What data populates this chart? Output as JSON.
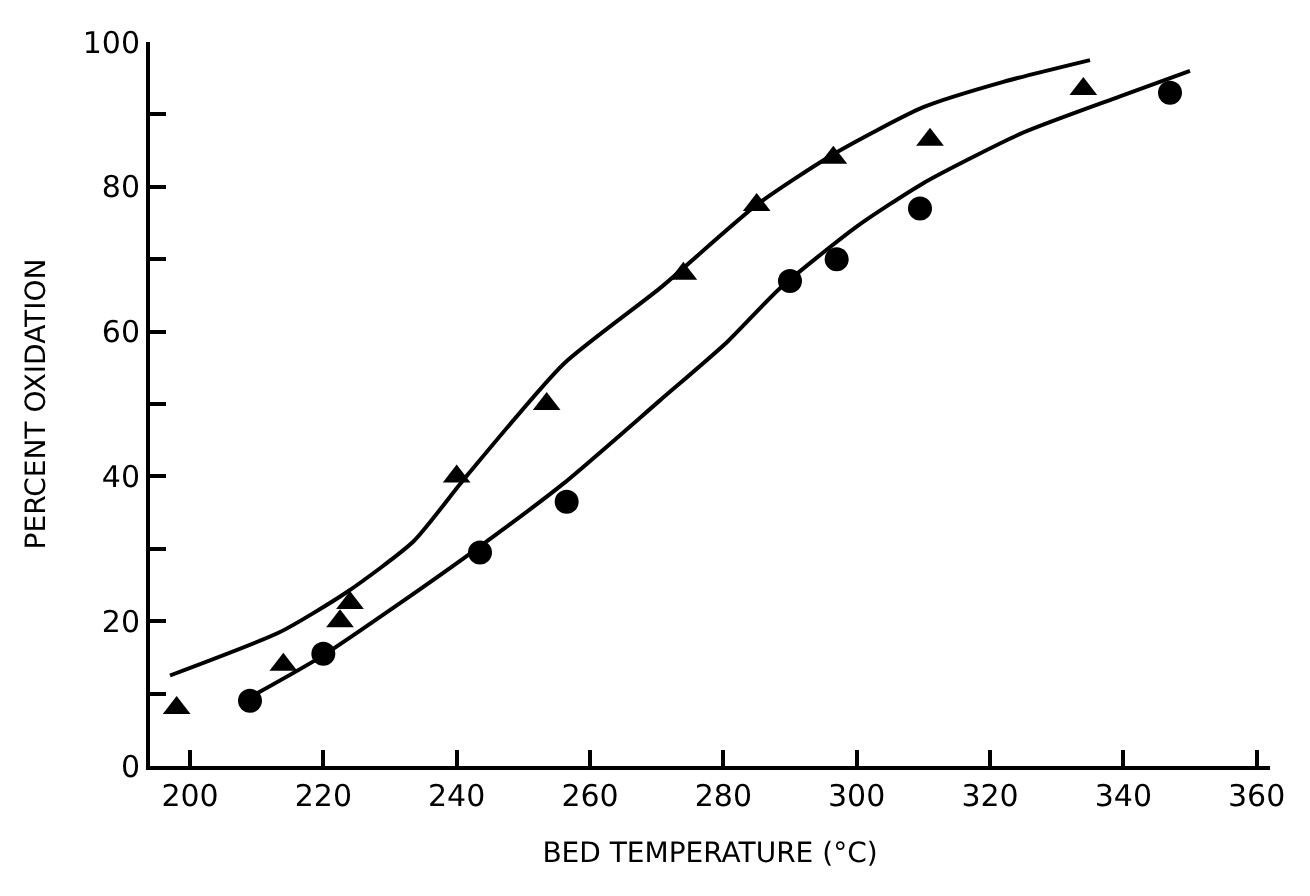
{
  "chart_data": {
    "type": "scatter",
    "xlabel": "BED TEMPERATURE (°C)",
    "ylabel": "PERCENT OXIDATION",
    "xlim": [
      194,
      362
    ],
    "xticks": [
      200,
      220,
      240,
      260,
      280,
      300,
      320,
      340,
      360
    ],
    "ylim": [
      0,
      100
    ],
    "yticks": [
      0,
      {
        "value": 10,
        "label": null
      },
      20,
      {
        "value": 30,
        "label": null
      },
      40,
      {
        "value": 50,
        "label": null
      },
      60,
      {
        "value": 70,
        "label": null
      },
      80,
      {
        "value": 90,
        "label": null
      },
      100
    ],
    "series": [
      {
        "marker": "triangle",
        "color": "#000000",
        "x": [
          198,
          214,
          222.5,
          224,
          240,
          253.5,
          274,
          285,
          296.5,
          311,
          334
        ],
        "values": [
          8,
          14,
          20,
          22.5,
          40,
          50,
          68,
          77.5,
          84,
          86.5,
          93.5
        ]
      },
      {
        "marker": "circle",
        "color": "#000000",
        "x": [
          209,
          220,
          243.5,
          256.5,
          290,
          297,
          309.5,
          347
        ],
        "values": [
          9,
          15.5,
          29.5,
          36.5,
          67,
          70,
          77,
          93
        ]
      },
      {
        "type": "line",
        "marker": "none",
        "color": "#000000",
        "x": [
          197,
          213.5,
          223.5,
          233.5,
          241,
          256,
          270.5,
          285,
          296.5,
          310,
          322,
          335
        ],
        "values": [
          12.5,
          18.5,
          24,
          31,
          39.5,
          55.5,
          66,
          77.5,
          84.5,
          91,
          94.5,
          97.5
        ]
      },
      {
        "type": "line",
        "marker": "none",
        "color": "#000000",
        "x": [
          210,
          219.5,
          231.5,
          243,
          256,
          270.5,
          280.5,
          288.5,
          300,
          310,
          325,
          339.5,
          350
        ],
        "values": [
          10,
          15,
          22.5,
          30,
          39,
          50.5,
          58.5,
          66,
          74.5,
          80.5,
          87.5,
          92.5,
          96
        ]
      }
    ]
  }
}
